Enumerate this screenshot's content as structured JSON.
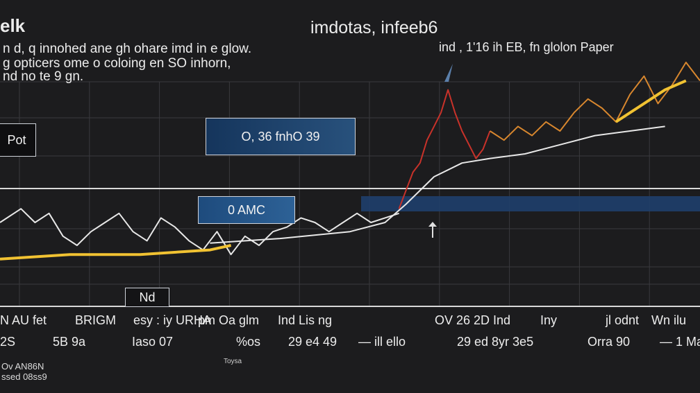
{
  "header": {
    "brand": "elk",
    "subtitle_lines": [
      "n d, q innohed ane gh ohare imd in e glow.",
      "g opticers ome o coloing en SO inhorn,",
      "nd no te 9 gn."
    ],
    "subtitle_right": "ind , 1'16 ih EB, fn glolon Paper"
  },
  "annotations": {
    "box_left": "Pot",
    "box_a": "O, 36 fnhO 39",
    "box_b": "0 AMC",
    "box_c": "Nd"
  },
  "label_rows": {
    "row1": [
      "N AU fet",
      "BRIGM",
      "esy : iy URHA",
      "pm Oa glm",
      "Ind Lis ng",
      "",
      "OV 26 2D Ind",
      "Iny",
      "jl odnt",
      "Wn ilu"
    ],
    "row2": [
      "2S",
      "5B 9a",
      "Iaso 07",
      "%os",
      "29 e4 49",
      "— ill ello",
      "29 ed 8yr 3e5",
      "Orra 90",
      "— 1 Ma"
    ]
  },
  "footer": {
    "lines": [
      "Ov AN86N",
      "ssed 08ss9"
    ],
    "small": "Toysa"
  },
  "colors": {
    "background": "#1c1c1e",
    "grid": "#3a3a3e",
    "series_white": "#e8e8e8",
    "series_red": "#c8322a",
    "series_orange": "#d8872e",
    "series_yellow": "#f1c232",
    "series_blue": "#6f9fd8",
    "band_blue": "#1f3f6b"
  },
  "chart_data": {
    "type": "line",
    "title": "imdotas, infeeb6",
    "xlabel": "",
    "ylabel": "",
    "xlim": [
      0,
      100
    ],
    "ylim": [
      0,
      100
    ],
    "grid": true,
    "series": [
      {
        "color": "#e8e8e8",
        "x": [
          0,
          3,
          5,
          7,
          9,
          11,
          13,
          15,
          17,
          19,
          21,
          23,
          25,
          27,
          29,
          31,
          33,
          35,
          37,
          39,
          41,
          43,
          45,
          47,
          49,
          51,
          53,
          55,
          57
        ],
        "y": [
          30,
          36,
          30,
          34,
          24,
          20,
          26,
          30,
          34,
          26,
          22,
          32,
          28,
          22,
          18,
          26,
          16,
          24,
          20,
          26,
          28,
          32,
          30,
          26,
          30,
          34,
          30,
          32,
          34
        ]
      },
      {
        "color": "#e8e8e8",
        "x": [
          30,
          40,
          50,
          55,
          58,
          62,
          66,
          70,
          75,
          80,
          85,
          90,
          95
        ],
        "y": [
          21,
          23,
          26,
          30,
          38,
          50,
          56,
          58,
          60,
          64,
          68,
          70,
          72
        ]
      },
      {
        "color": "#c8322a",
        "x": [
          57,
          58,
          59,
          60,
          61,
          62,
          63,
          64,
          65,
          66,
          67,
          68,
          69,
          70
        ],
        "y": [
          36,
          44,
          52,
          56,
          66,
          72,
          78,
          88,
          78,
          70,
          64,
          58,
          62,
          70
        ]
      },
      {
        "color": "#d8872e",
        "x": [
          70,
          72,
          74,
          76,
          78,
          80,
          82,
          84,
          86,
          88,
          90,
          92,
          94,
          96,
          98,
          100
        ],
        "y": [
          70,
          66,
          72,
          68,
          74,
          70,
          78,
          84,
          80,
          74,
          86,
          94,
          82,
          90,
          100,
          92
        ]
      },
      {
        "color": "#f1c232",
        "x": [
          0,
          10,
          20,
          30,
          33
        ],
        "y": [
          14,
          16,
          16,
          18,
          20
        ]
      },
      {
        "color": "#f1c232",
        "x": [
          88,
          92,
          95,
          98
        ],
        "y": [
          74,
          82,
          88,
          92
        ]
      }
    ]
  }
}
